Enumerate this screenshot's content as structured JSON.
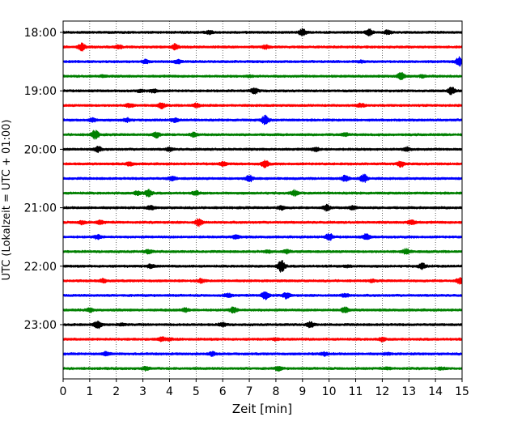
{
  "chart_data": {
    "type": "line",
    "title": "",
    "xlabel": "Zeit  [min]",
    "ylabel": "UTC (Lokalzeit = UTC + 01:00)",
    "xlim": [
      0,
      15
    ],
    "x_ticks": [
      "0",
      "1",
      "2",
      "3",
      "4",
      "5",
      "6",
      "7",
      "8",
      "9",
      "10",
      "11",
      "12",
      "13",
      "14",
      "15"
    ],
    "grid": "vertical dotted lines at each minute",
    "trace_interval_minutes": 15,
    "start_time": "18:00",
    "y_tick_labels": [
      "18:00",
      "19:00",
      "20:00",
      "21:00",
      "22:00",
      "23:00"
    ],
    "trace_colors": [
      "#000000",
      "#ff0000",
      "#0000ff",
      "#008000"
    ],
    "series": [
      {
        "start": "18:00",
        "color": "#000000",
        "bursts": [
          [
            9.0,
            4
          ],
          [
            11.5,
            4
          ],
          [
            5.5,
            2
          ],
          [
            12.2,
            2
          ]
        ]
      },
      {
        "start": "18:15",
        "color": "#ff0000",
        "bursts": [
          [
            0.7,
            4
          ],
          [
            4.2,
            3
          ],
          [
            2.1,
            2
          ],
          [
            7.6,
            2
          ]
        ]
      },
      {
        "start": "18:30",
        "color": "#0000ff",
        "bursts": [
          [
            14.9,
            5
          ],
          [
            3.1,
            2
          ],
          [
            4.3,
            2
          ],
          [
            11.2,
            1
          ]
        ]
      },
      {
        "start": "18:45",
        "color": "#008000",
        "bursts": [
          [
            12.7,
            4
          ],
          [
            1.5,
            1
          ],
          [
            7.0,
            1
          ],
          [
            13.5,
            1
          ]
        ]
      },
      {
        "start": "19:00",
        "color": "#000000",
        "bursts": [
          [
            14.6,
            4
          ],
          [
            7.2,
            3
          ],
          [
            3.4,
            2
          ],
          [
            2.9,
            1
          ]
        ]
      },
      {
        "start": "19:15",
        "color": "#ff0000",
        "bursts": [
          [
            3.7,
            3
          ],
          [
            11.2,
            2
          ],
          [
            5.0,
            2
          ],
          [
            2.5,
            2
          ]
        ]
      },
      {
        "start": "19:30",
        "color": "#0000ff",
        "bursts": [
          [
            7.6,
            5
          ],
          [
            4.2,
            2
          ],
          [
            1.1,
            2
          ],
          [
            2.4,
            2
          ]
        ]
      },
      {
        "start": "19:45",
        "color": "#008000",
        "bursts": [
          [
            1.2,
            5
          ],
          [
            3.5,
            3
          ],
          [
            4.9,
            2
          ],
          [
            10.6,
            2
          ]
        ]
      },
      {
        "start": "20:00",
        "color": "#000000",
        "bursts": [
          [
            1.3,
            3
          ],
          [
            4.0,
            2
          ],
          [
            9.5,
            2
          ],
          [
            12.9,
            2
          ]
        ]
      },
      {
        "start": "20:15",
        "color": "#ff0000",
        "bursts": [
          [
            7.6,
            4
          ],
          [
            12.7,
            3
          ],
          [
            2.5,
            2
          ],
          [
            6.0,
            2
          ]
        ]
      },
      {
        "start": "20:30",
        "color": "#0000ff",
        "bursts": [
          [
            11.3,
            5
          ],
          [
            7.0,
            4
          ],
          [
            10.6,
            3
          ],
          [
            4.1,
            2
          ]
        ]
      },
      {
        "start": "20:45",
        "color": "#008000",
        "bursts": [
          [
            3.2,
            4
          ],
          [
            8.7,
            3
          ],
          [
            5.0,
            2
          ],
          [
            2.8,
            2
          ]
        ]
      },
      {
        "start": "21:00",
        "color": "#000000",
        "bursts": [
          [
            9.9,
            3
          ],
          [
            8.2,
            2
          ],
          [
            3.3,
            2
          ],
          [
            10.9,
            2
          ]
        ]
      },
      {
        "start": "21:15",
        "color": "#ff0000",
        "bursts": [
          [
            5.1,
            4
          ],
          [
            13.1,
            3
          ],
          [
            1.4,
            2
          ],
          [
            0.7,
            2
          ]
        ]
      },
      {
        "start": "21:30",
        "color": "#0000ff",
        "bursts": [
          [
            10.0,
            4
          ],
          [
            11.4,
            3
          ],
          [
            1.3,
            2
          ],
          [
            6.5,
            2
          ]
        ]
      },
      {
        "start": "21:45",
        "color": "#008000",
        "bursts": [
          [
            12.9,
            3
          ],
          [
            8.4,
            2
          ],
          [
            3.2,
            2
          ],
          [
            7.7,
            1
          ]
        ]
      },
      {
        "start": "22:00",
        "color": "#000000",
        "bursts": [
          [
            8.2,
            7
          ],
          [
            13.5,
            3
          ],
          [
            3.3,
            2
          ],
          [
            10.7,
            1
          ]
        ]
      },
      {
        "start": "22:15",
        "color": "#ff0000",
        "bursts": [
          [
            14.9,
            3
          ],
          [
            1.5,
            2
          ],
          [
            5.2,
            2
          ],
          [
            11.6,
            1
          ]
        ]
      },
      {
        "start": "22:30",
        "color": "#0000ff",
        "bursts": [
          [
            7.6,
            5
          ],
          [
            8.4,
            3
          ],
          [
            6.2,
            2
          ],
          [
            10.6,
            2
          ]
        ]
      },
      {
        "start": "22:45",
        "color": "#008000",
        "bursts": [
          [
            10.6,
            3
          ],
          [
            6.4,
            3
          ],
          [
            4.6,
            2
          ],
          [
            1.0,
            2
          ]
        ]
      },
      {
        "start": "23:00",
        "color": "#000000",
        "bursts": [
          [
            1.3,
            4
          ],
          [
            9.3,
            3
          ],
          [
            6.0,
            2
          ],
          [
            2.2,
            1
          ]
        ]
      },
      {
        "start": "23:15",
        "color": "#ff0000",
        "bursts": [
          [
            12.0,
            2
          ],
          [
            3.7,
            2
          ],
          [
            8.0,
            1
          ],
          [
            4.0,
            1
          ]
        ]
      },
      {
        "start": "23:30",
        "color": "#0000ff",
        "bursts": [
          [
            5.6,
            2
          ],
          [
            1.6,
            2
          ],
          [
            9.8,
            2
          ],
          [
            12.2,
            1
          ]
        ]
      },
      {
        "start": "23:45",
        "color": "#008000",
        "bursts": [
          [
            3.1,
            2
          ],
          [
            8.1,
            2
          ],
          [
            12.2,
            1
          ],
          [
            14.2,
            1
          ]
        ]
      }
    ]
  }
}
